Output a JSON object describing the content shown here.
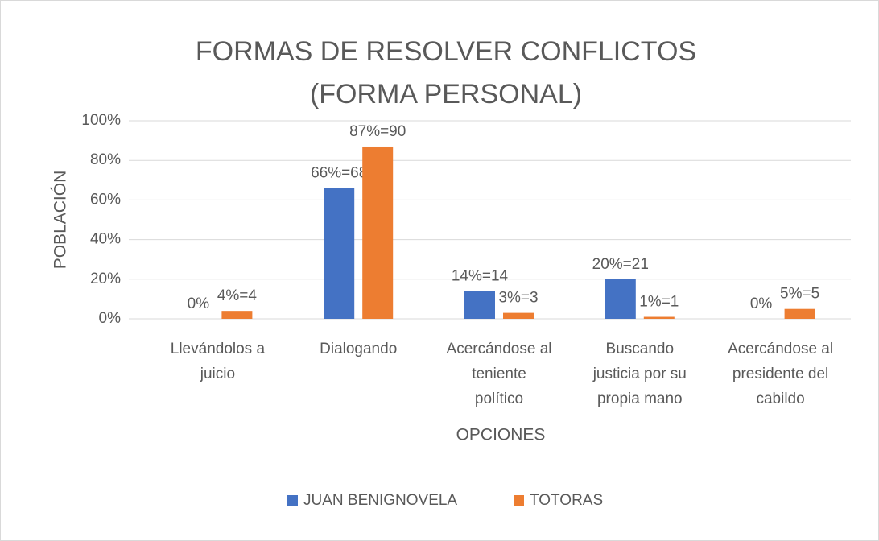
{
  "chart_data": {
    "type": "bar",
    "title": [
      "FORMAS DE RESOLVER CONFLICTOS",
      "(FORMA PERSONAL)"
    ],
    "x_label": "OPCIONES",
    "y_label": "POBLACIÓN",
    "categories": [
      "Llevándolos a juicio",
      "Dialogando",
      "Acercándose al teniente político",
      "Buscando justicia por su propia mano",
      "Acercándose al presidente del cabildo"
    ],
    "series": [
      {
        "name": "JUAN BENIGNOVELA",
        "color": "#4472c4",
        "values": [
          0,
          66,
          14,
          20,
          0
        ],
        "value_labels": [
          "0%",
          "66%=68",
          "14%=14",
          "20%=21",
          "0%"
        ]
      },
      {
        "name": "TOTORAS",
        "color": "#ed7d31",
        "values": [
          4,
          87,
          3,
          1,
          5
        ],
        "value_labels": [
          "4%=4",
          "87%=90",
          "3%=3",
          "1%=1",
          "5%=5"
        ]
      }
    ],
    "ylim": [
      0,
      100
    ],
    "yticks": [
      {
        "value": 0,
        "label": "0%"
      },
      {
        "value": 20,
        "label": "20%"
      },
      {
        "value": 40,
        "label": "40%"
      },
      {
        "value": 60,
        "label": "60%"
      },
      {
        "value": 80,
        "label": "80%"
      },
      {
        "value": 100,
        "label": "100%"
      }
    ],
    "grid": true,
    "legend": "bottom"
  }
}
